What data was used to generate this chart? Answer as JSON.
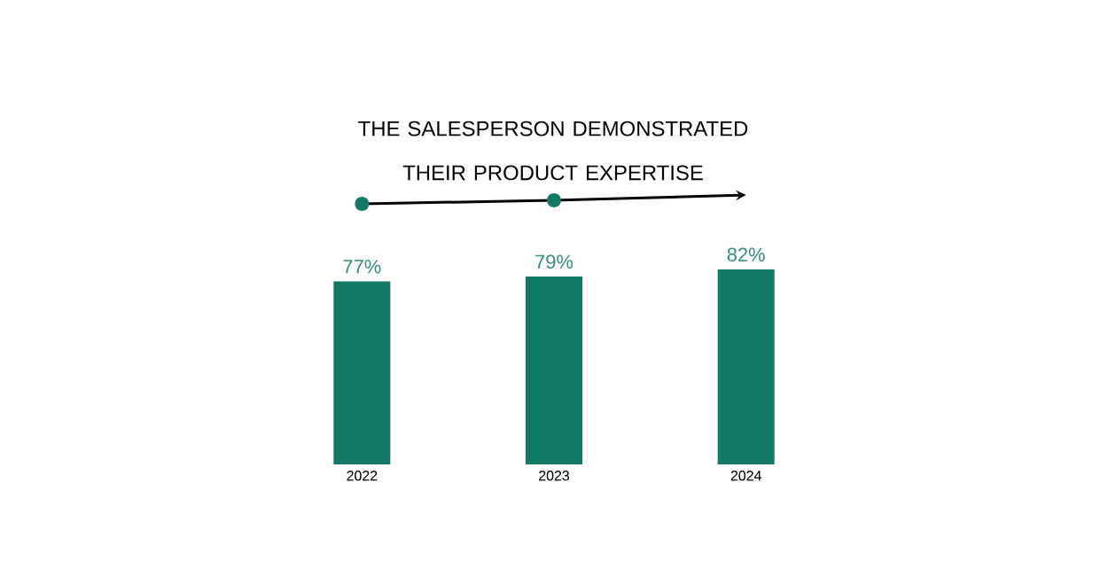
{
  "chart_data": {
    "type": "bar",
    "title": "THE SALESPERSON DEMONSTRATED THEIR PRODUCT EXPERTISE",
    "categories": [
      "2022",
      "2023",
      "2024"
    ],
    "values": [
      77,
      79,
      82
    ],
    "value_labels": [
      "77%",
      "79%",
      "82%"
    ],
    "color": "#137866"
  }
}
